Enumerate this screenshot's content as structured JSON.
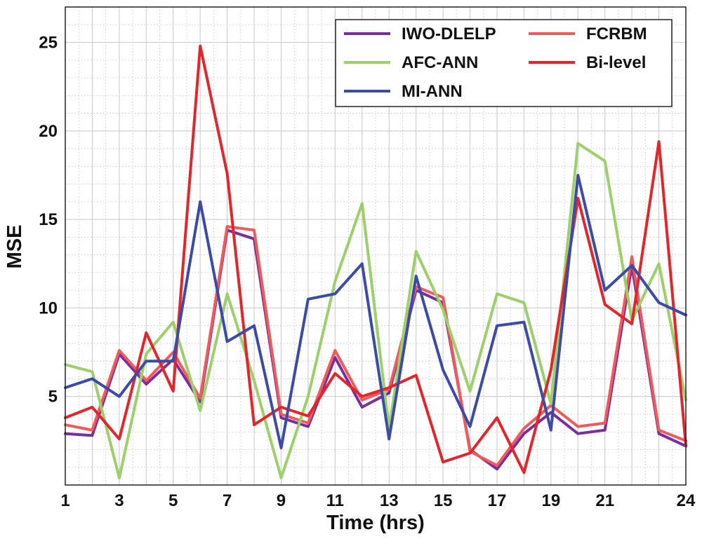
{
  "chart_data": {
    "type": "line",
    "title": "",
    "xlabel": "Time (hrs)",
    "ylabel": "MSE",
    "x": [
      1,
      2,
      3,
      4,
      5,
      6,
      7,
      8,
      9,
      10,
      11,
      12,
      13,
      14,
      15,
      16,
      17,
      18,
      19,
      20,
      21,
      22,
      23,
      24
    ],
    "xlim": [
      1,
      24
    ],
    "ylim": [
      0,
      27
    ],
    "xticks": [
      1,
      3,
      5,
      7,
      9,
      11,
      13,
      15,
      17,
      19,
      21,
      24
    ],
    "yticks": [
      5,
      10,
      15,
      20,
      25
    ],
    "grid": true,
    "legend_position": "top-right",
    "series": [
      {
        "name": "IWO-DLELP",
        "color": "#7B2D9E",
        "values": [
          2.9,
          2.8,
          7.4,
          5.7,
          7.1,
          4.7,
          14.4,
          13.9,
          3.8,
          3.3,
          7.2,
          4.4,
          5.2,
          11.0,
          10.3,
          2.0,
          0.9,
          2.9,
          4.1,
          2.9,
          3.1,
          12.4,
          2.9,
          2.2
        ]
      },
      {
        "name": "FCRBM",
        "color": "#EF5A5A",
        "values": [
          3.4,
          3.1,
          7.6,
          5.9,
          7.5,
          4.9,
          14.6,
          14.4,
          4.0,
          3.5,
          7.6,
          4.8,
          5.4,
          11.2,
          10.6,
          1.9,
          1.1,
          3.2,
          4.5,
          3.3,
          3.5,
          12.9,
          3.1,
          2.5
        ]
      },
      {
        "name": "AFC-ANN",
        "color": "#9DCF6A",
        "values": [
          6.8,
          6.4,
          0.4,
          7.4,
          9.2,
          4.2,
          10.8,
          5.9,
          0.4,
          5.0,
          11.5,
          15.9,
          3.2,
          13.2,
          9.9,
          5.3,
          10.8,
          10.3,
          4.6,
          19.3,
          18.3,
          9.3,
          12.5,
          4.8
        ]
      },
      {
        "name": "Bi-level",
        "color": "#E3262B",
        "values": [
          3.8,
          4.4,
          2.6,
          8.6,
          5.3,
          24.8,
          17.6,
          3.4,
          4.4,
          3.9,
          6.3,
          5.0,
          5.5,
          6.2,
          1.3,
          1.8,
          3.8,
          0.7,
          6.5,
          16.2,
          10.2,
          9.1,
          19.4,
          2.2
        ]
      },
      {
        "name": "MI-ANN",
        "color": "#3B4BA6",
        "values": [
          5.5,
          6.0,
          5.0,
          7.0,
          7.0,
          16.0,
          8.1,
          9.0,
          2.1,
          10.5,
          10.8,
          12.5,
          2.6,
          11.8,
          6.5,
          3.3,
          9.0,
          9.2,
          3.1,
          17.5,
          11.0,
          12.4,
          10.3,
          9.6
        ]
      }
    ]
  }
}
